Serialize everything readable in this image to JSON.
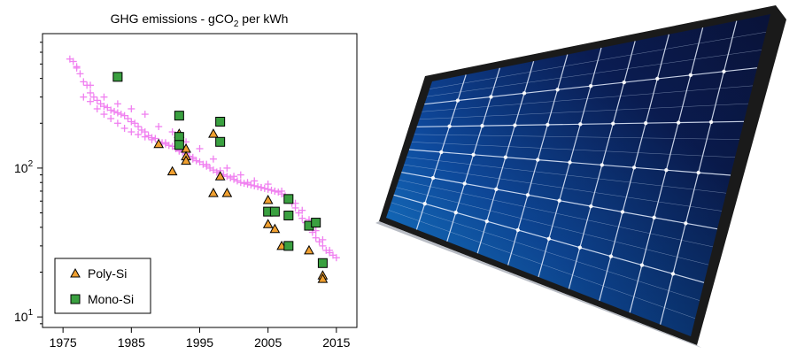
{
  "chart_data": {
    "type": "scatter",
    "title": "GHG emissions - gCO",
    "title_sub": "2",
    "title_tail": " per kWh",
    "xlabel": "",
    "ylabel": "",
    "y_scale": "log",
    "xlim": [
      1972,
      2018
    ],
    "ylim": [
      8.5,
      800
    ],
    "x_ticks": [
      1975,
      1985,
      1995,
      2005,
      2015
    ],
    "x_tick_labels": [
      "1975",
      "1985",
      "1995",
      "2005",
      "2015"
    ],
    "y_ticks": [
      10,
      100
    ],
    "y_tick_labels": [
      {
        "base": "10",
        "exp": "1"
      },
      {
        "base": "10",
        "exp": "2"
      }
    ],
    "legend_position": "bottom-left",
    "grid": false,
    "series": [
      {
        "name": "Poly-Si",
        "marker": "triangle",
        "color": "#f0a030",
        "x": [
          1989,
          1991,
          1992,
          1993,
          1993,
          1993,
          1997,
          1997,
          1998,
          1999,
          2005,
          2005,
          2006,
          2007,
          2011,
          2013,
          2013
        ],
        "y": [
          145,
          95,
          170,
          135,
          120,
          112,
          170,
          68,
          88,
          68,
          61,
          42,
          39,
          30,
          28,
          19,
          18
        ]
      },
      {
        "name": "Mono-Si",
        "marker": "square",
        "color": "#3aa040",
        "x": [
          1983,
          1992,
          1992,
          1992,
          1998,
          1998,
          2005,
          2006,
          2008,
          2008,
          2008,
          2011,
          2012,
          2013
        ],
        "y": [
          410,
          225,
          162,
          143,
          205,
          150,
          51,
          51,
          62,
          48,
          30,
          41,
          43,
          23
        ]
      },
      {
        "marker": "plus",
        "color": "#f080f0",
        "x": [
          1976,
          1976.5,
          1977,
          1977.5,
          1978,
          1978.5,
          1979,
          1979.5,
          1980,
          1980.5,
          1981,
          1981.5,
          1982,
          1982.5,
          1983,
          1983.5,
          1984,
          1984.5,
          1985,
          1985.5,
          1986,
          1986.5,
          1987,
          1987.5,
          1988,
          1988.5,
          1989,
          1989.5,
          1990,
          1990.5,
          1991,
          1991.5,
          1992,
          1992.5,
          1993,
          1993.5,
          1994,
          1994.5,
          1995,
          1995.5,
          1996,
          1996.5,
          1997,
          1997.5,
          1998,
          1998.5,
          1999,
          1999.5,
          2000,
          2000.5,
          2001,
          2001.5,
          2002,
          2002.5,
          2003,
          2003.5,
          2004,
          2004.5,
          2005,
          2005.5,
          2006,
          2006.5,
          2007,
          2007.5,
          2008,
          2008.5,
          2009,
          2009.5,
          2010,
          2010.5,
          2011,
          2011.5,
          2012,
          2012.5,
          2013,
          2013.5,
          2014,
          2014.5,
          2015,
          1978,
          1979,
          1980,
          1981,
          1982,
          1983,
          1984,
          1985,
          1986,
          1987,
          1988,
          1990,
          1992,
          1994,
          1996,
          1998,
          2000,
          2002,
          2004,
          2006,
          2008,
          2010,
          2012,
          2014,
          1977,
          1979,
          1981,
          1983,
          1985,
          1987,
          1989,
          1991,
          1993,
          1995,
          1997,
          1999,
          2001,
          2003,
          2005,
          2007,
          2009,
          2011,
          2013
        ],
        "y": [
          540,
          520,
          470,
          430,
          380,
          360,
          320,
          300,
          285,
          270,
          260,
          255,
          245,
          240,
          235,
          230,
          225,
          215,
          205,
          200,
          190,
          180,
          175,
          165,
          160,
          158,
          150,
          148,
          145,
          142,
          140,
          135,
          132,
          128,
          125,
          120,
          115,
          112,
          110,
          106,
          103,
          100,
          97,
          94,
          92,
          90,
          88,
          86,
          84,
          82,
          80,
          79,
          78,
          77,
          76,
          75,
          74,
          73,
          72,
          71,
          70,
          69,
          67,
          65,
          62,
          58,
          54,
          50,
          46,
          43,
          40,
          37,
          34,
          32,
          30,
          28,
          27,
          26,
          25,
          300,
          280,
          250,
          230,
          215,
          200,
          185,
          175,
          168,
          162,
          155,
          148,
          130,
          118,
          106,
          96,
          88,
          80,
          74,
          70,
          62,
          52,
          38,
          28,
          480,
          360,
          300,
          270,
          250,
          230,
          190,
          175,
          150,
          135,
          115,
          100,
          90,
          82,
          78,
          70,
          58,
          45,
          33
        ]
      }
    ]
  }
}
